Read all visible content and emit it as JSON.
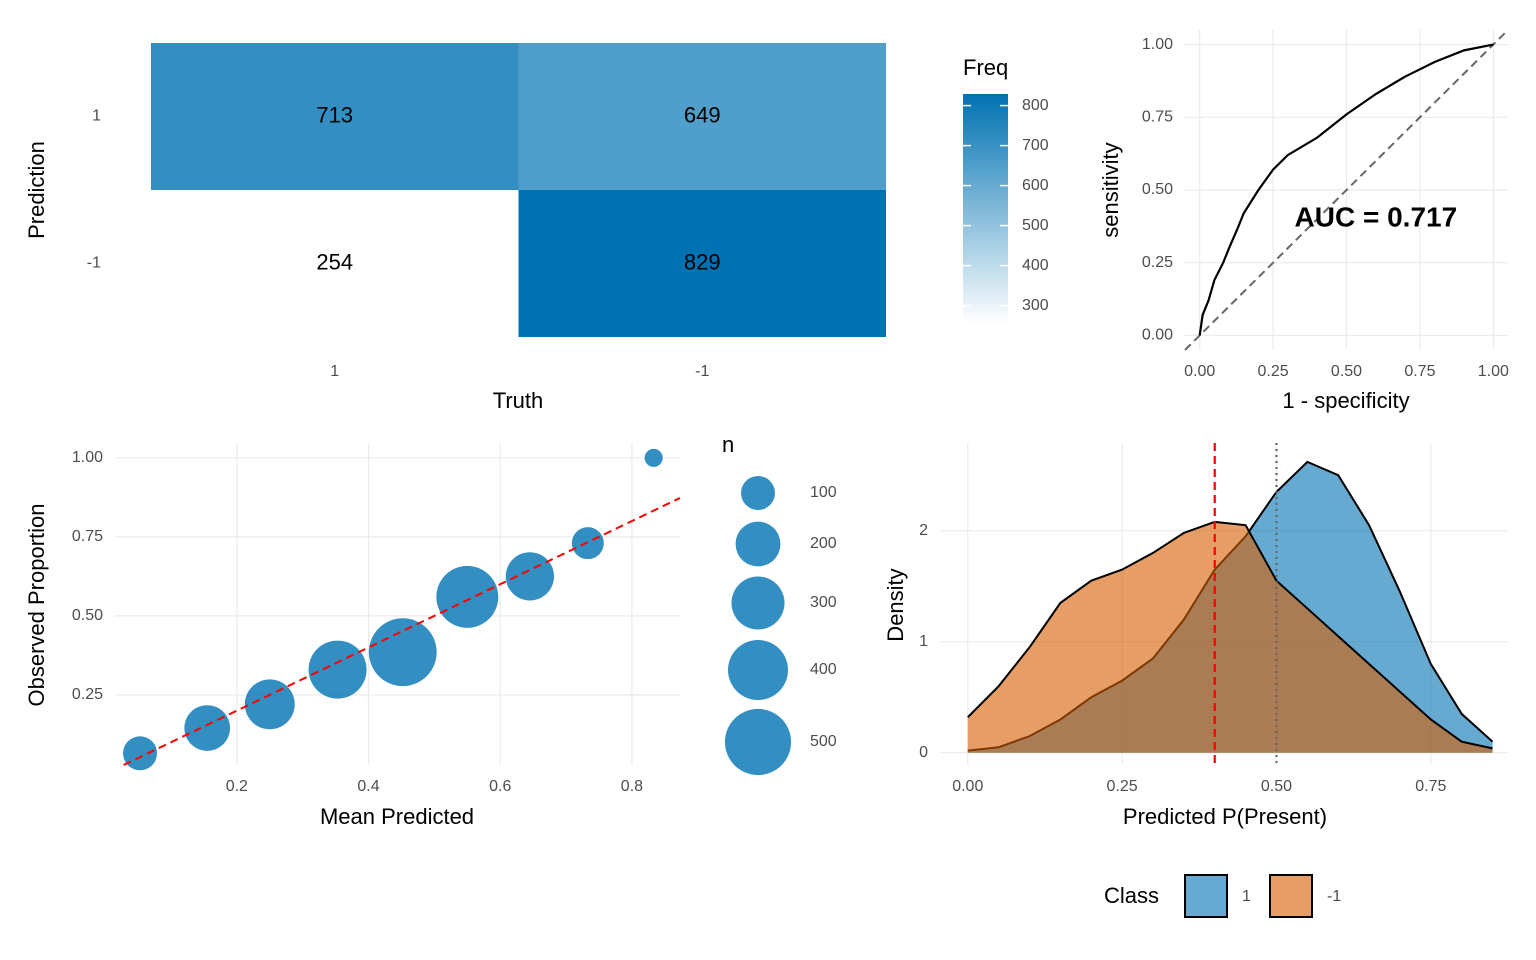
{
  "chart_data": [
    {
      "type": "heatmap",
      "x_label": "Truth",
      "y_label": "Prediction",
      "x_categories": [
        "1",
        "-1"
      ],
      "y_categories": [
        "1",
        "-1"
      ],
      "values": [
        [
          713,
          649
        ],
        [
          254,
          829
        ]
      ],
      "legend_title": "Freq",
      "colors": [
        "#ffffff",
        "#0072b2"
      ],
      "clim": [
        254,
        829
      ],
      "cticks": [
        300,
        400,
        500,
        600,
        700,
        800
      ]
    },
    {
      "type": "line",
      "x_label": "1 - specificity",
      "y_label": "sensitivity",
      "annotation": "AUC = 0.717",
      "x": [
        0,
        0.01,
        0.03,
        0.05,
        0.08,
        0.1,
        0.13,
        0.15,
        0.2,
        0.25,
        0.3,
        0.4,
        0.5,
        0.6,
        0.7,
        0.8,
        0.9,
        1
      ],
      "y": [
        0,
        0.07,
        0.12,
        0.19,
        0.25,
        0.3,
        0.37,
        0.42,
        0.5,
        0.57,
        0.62,
        0.68,
        0.76,
        0.83,
        0.89,
        0.94,
        0.98,
        1
      ],
      "color": "#000000",
      "xlim": [
        -0.05,
        1.05
      ],
      "ylim": [
        -0.05,
        1.05
      ],
      "xticks": [
        {
          "value": 0,
          "label": "0.00"
        },
        {
          "value": 0.25,
          "label": "0.25"
        },
        {
          "value": 0.5,
          "label": "0.50"
        },
        {
          "value": 0.75,
          "label": "0.75"
        },
        {
          "value": 1,
          "label": "1.00"
        }
      ],
      "yticks": [
        {
          "value": 0,
          "label": "0.00"
        },
        {
          "value": 0.25,
          "label": "0.25"
        },
        {
          "value": 0.5,
          "label": "0.50"
        },
        {
          "value": 0.75,
          "label": "0.75"
        },
        {
          "value": 1,
          "label": "1.00"
        }
      ],
      "grid": true
    },
    {
      "type": "scatter",
      "x_label": "Mean Predicted",
      "y_label": "Observed Proportion",
      "x": [
        0.053,
        0.155,
        0.25,
        0.353,
        0.452,
        0.55,
        0.645,
        0.733,
        0.833
      ],
      "y": [
        0.065,
        0.145,
        0.22,
        0.33,
        0.385,
        0.56,
        0.625,
        0.73,
        1.0
      ],
      "size": [
        100,
        210,
        260,
        370,
        530,
        430,
        240,
        85,
        15
      ],
      "color": "#0072b2",
      "size_legend_title": "n",
      "size_ticks": [
        100,
        200,
        300,
        400,
        500
      ],
      "xlim": [
        0.015,
        0.873
      ],
      "ylim": [
        0.028,
        1.047
      ],
      "xticks": [
        0.2,
        0.4,
        0.6,
        0.8
      ],
      "yticks": [
        {
          "value": 0.25,
          "label": "0.25"
        },
        {
          "value": 0.5,
          "label": "0.50"
        },
        {
          "value": 0.75,
          "label": "0.75"
        },
        {
          "value": 1,
          "label": "1.00"
        }
      ],
      "grid": true
    },
    {
      "type": "area",
      "x_label": "Predicted P(Present)",
      "y_label": "Density",
      "legend_title": "Class",
      "x": [
        0,
        0.05,
        0.1,
        0.15,
        0.2,
        0.25,
        0.3,
        0.35,
        0.4,
        0.45,
        0.5,
        0.55,
        0.6,
        0.65,
        0.7,
        0.75,
        0.8,
        0.85
      ],
      "series": [
        {
          "name": "1",
          "color": "#0072b2",
          "values": [
            0.02,
            0.05,
            0.15,
            0.3,
            0.5,
            0.65,
            0.85,
            1.2,
            1.65,
            1.95,
            2.35,
            2.62,
            2.5,
            2.05,
            1.45,
            0.8,
            0.35,
            0.1
          ]
        },
        {
          "name": "-1",
          "color": "#d55e00",
          "values": [
            0.32,
            0.6,
            0.95,
            1.35,
            1.55,
            1.65,
            1.8,
            1.98,
            2.08,
            2.05,
            1.55,
            1.3,
            1.05,
            0.8,
            0.55,
            0.3,
            0.1,
            0.04
          ]
        }
      ],
      "vlines": [
        {
          "value": 0.4,
          "color": "#ff0000",
          "style": "dashed"
        },
        {
          "value": 0.5,
          "color": "#666666",
          "style": "dotted"
        }
      ],
      "xlim": [
        -0.045,
        0.875
      ],
      "ylim": [
        -0.11,
        2.79
      ],
      "xticks": [
        {
          "value": 0,
          "label": "0.00"
        },
        {
          "value": 0.25,
          "label": "0.25"
        },
        {
          "value": 0.5,
          "label": "0.50"
        },
        {
          "value": 0.75,
          "label": "0.75"
        }
      ],
      "yticks": [
        0,
        1,
        2
      ],
      "grid": true
    }
  ]
}
